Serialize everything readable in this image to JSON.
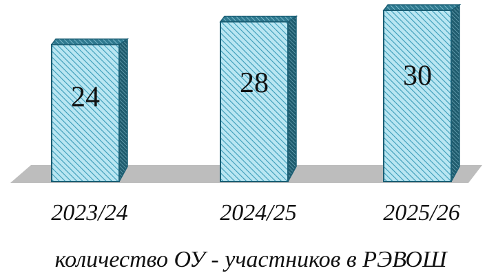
{
  "chart_data": {
    "type": "bar",
    "style": "3d-column",
    "categories": [
      "2023/24",
      "2024/25",
      "2025/26"
    ],
    "values": [
      24,
      28,
      30
    ],
    "xlabel": "количество ОУ - участников в РЭВОШ",
    "ylabel": "",
    "ylim": [
      0,
      34
    ],
    "grid": false,
    "legend": "none",
    "colors": {
      "bar_fill": "#b9e6f2",
      "bar_hatch": "#3a9bb8",
      "bar_edge": "#1c5f75",
      "side_dark": "#1f5c6e",
      "floor": "#bdbdbd"
    }
  }
}
